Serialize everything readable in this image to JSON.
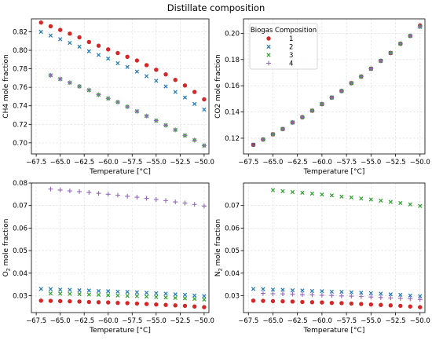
{
  "figure_title": "Distillate composition",
  "colors": {
    "1": "#d62728",
    "2": "#1f77b4",
    "3": "#2ca02c",
    "4": "#9467bd"
  },
  "legend": {
    "title": "Biogas Composition",
    "entries": [
      "1",
      "2",
      "3",
      "4"
    ],
    "location": "upper-left of top-right panel"
  },
  "chart_data": [
    {
      "type": "scatter",
      "ylabel": "CH4 mole fraction",
      "xlabel": "Temperature [°C]",
      "xlim": [
        -68.0,
        -49.5
      ],
      "ylim": [
        0.688,
        0.834
      ],
      "xticks": [
        -67.5,
        -65.0,
        -62.5,
        -60.0,
        -57.5,
        -55.0,
        -52.5,
        -50.0
      ],
      "xtick_labels": [
        "−67.5",
        "−65.0",
        "−62.5",
        "−60.0",
        "−57.5",
        "−55.0",
        "−52.5",
        "−50.0"
      ],
      "yticks": [
        0.7,
        0.72,
        0.74,
        0.76,
        0.78,
        0.8,
        0.82
      ],
      "ytick_labels": [
        "0.70",
        "0.72",
        "0.74",
        "0.76",
        "0.78",
        "0.80",
        "0.82"
      ],
      "grid": true,
      "series": [
        {
          "name": "1",
          "marker": "circle",
          "x": [
            -67.0,
            -66.0,
            -65.0,
            -64.0,
            -63.0,
            -62.0,
            -61.0,
            -60.0,
            -59.0,
            -58.0,
            -57.0,
            -56.0,
            -55.0,
            -54.0,
            -53.0,
            -52.0,
            -51.0,
            -50.0
          ],
          "y": [
            0.83,
            0.826,
            0.822,
            0.818,
            0.814,
            0.809,
            0.805,
            0.801,
            0.797,
            0.793,
            0.789,
            0.784,
            0.779,
            0.774,
            0.768,
            0.762,
            0.755,
            0.747
          ]
        },
        {
          "name": "2",
          "marker": "x",
          "x": [
            -67.0,
            -66.0,
            -65.0,
            -64.0,
            -63.0,
            -62.0,
            -61.0,
            -60.0,
            -59.0,
            -58.0,
            -57.0,
            -56.0,
            -55.0,
            -54.0,
            -53.0,
            -52.0,
            -51.0,
            -50.0
          ],
          "y": [
            0.82,
            0.816,
            0.812,
            0.808,
            0.804,
            0.799,
            0.795,
            0.791,
            0.786,
            0.782,
            0.777,
            0.772,
            0.767,
            0.761,
            0.755,
            0.749,
            0.742,
            0.736
          ]
        },
        {
          "name": "3",
          "marker": "x",
          "x": [
            -66.0,
            -65.0,
            -64.0,
            -63.0,
            -62.0,
            -61.0,
            -60.0,
            -59.0,
            -58.0,
            -57.0,
            -56.0,
            -55.0,
            -54.0,
            -53.0,
            -52.0,
            -51.0,
            -50.0
          ],
          "y": [
            0.773,
            0.769,
            0.765,
            0.761,
            0.757,
            0.752,
            0.748,
            0.744,
            0.739,
            0.734,
            0.729,
            0.724,
            0.719,
            0.714,
            0.708,
            0.703,
            0.697
          ]
        },
        {
          "name": "4",
          "marker": "plus",
          "x": [
            -66.0,
            -65.0,
            -64.0,
            -63.0,
            -62.0,
            -61.0,
            -60.0,
            -59.0,
            -58.0,
            -57.0,
            -56.0,
            -55.0,
            -54.0,
            -53.0,
            -52.0,
            -51.0,
            -50.0
          ],
          "y": [
            0.773,
            0.769,
            0.765,
            0.761,
            0.757,
            0.752,
            0.748,
            0.744,
            0.739,
            0.734,
            0.729,
            0.724,
            0.719,
            0.714,
            0.708,
            0.703,
            0.697
          ]
        }
      ]
    },
    {
      "type": "scatter",
      "ylabel": "CO2 mole fraction",
      "xlabel": "Temperature [°C]",
      "xlim": [
        -68.0,
        -49.5
      ],
      "ylim": [
        0.108,
        0.211
      ],
      "xticks": [
        -67.5,
        -65.0,
        -62.5,
        -60.0,
        -57.5,
        -55.0,
        -52.5,
        -50.0
      ],
      "xtick_labels": [
        "−67.5",
        "−65.0",
        "−62.5",
        "−60.0",
        "−57.5",
        "−55.0",
        "−52.5",
        "−50.0"
      ],
      "yticks": [
        0.12,
        0.14,
        0.16,
        0.18,
        0.2
      ],
      "ytick_labels": [
        "0.12",
        "0.14",
        "0.16",
        "0.18",
        "0.20"
      ],
      "grid": true,
      "series": [
        {
          "name": "1",
          "marker": "circle",
          "x": [
            -67.0,
            -66.0,
            -65.0,
            -64.0,
            -63.0,
            -62.0,
            -61.0,
            -60.0,
            -59.0,
            -58.0,
            -57.0,
            -56.0,
            -55.0,
            -54.0,
            -53.0,
            -52.0,
            -51.0,
            -50.0
          ],
          "y": [
            0.115,
            0.119,
            0.123,
            0.127,
            0.132,
            0.136,
            0.141,
            0.146,
            0.151,
            0.156,
            0.162,
            0.167,
            0.173,
            0.179,
            0.185,
            0.192,
            0.198,
            0.206
          ]
        },
        {
          "name": "2",
          "marker": "x",
          "x": [
            -67.0,
            -66.0,
            -65.0,
            -64.0,
            -63.0,
            -62.0,
            -61.0,
            -60.0,
            -59.0,
            -58.0,
            -57.0,
            -56.0,
            -55.0,
            -54.0,
            -53.0,
            -52.0,
            -51.0,
            -50.0
          ],
          "y": [
            0.115,
            0.119,
            0.123,
            0.127,
            0.132,
            0.136,
            0.141,
            0.146,
            0.151,
            0.156,
            0.162,
            0.167,
            0.173,
            0.179,
            0.185,
            0.192,
            0.198,
            0.205
          ]
        },
        {
          "name": "3",
          "marker": "x",
          "x": [
            -66.0,
            -65.0,
            -64.0,
            -63.0,
            -62.0,
            -61.0,
            -60.0,
            -59.0,
            -58.0,
            -57.0,
            -56.0,
            -55.0,
            -54.0,
            -53.0,
            -52.0,
            -51.0,
            -50.0
          ],
          "y": [
            0.119,
            0.123,
            0.127,
            0.132,
            0.136,
            0.141,
            0.146,
            0.151,
            0.156,
            0.162,
            0.167,
            0.173,
            0.179,
            0.185,
            0.192,
            0.198,
            0.205
          ]
        },
        {
          "name": "4",
          "marker": "plus",
          "x": [
            -66.0,
            -65.0,
            -64.0,
            -63.0,
            -62.0,
            -61.0,
            -60.0,
            -59.0,
            -58.0,
            -57.0,
            -56.0,
            -55.0,
            -54.0,
            -53.0,
            -52.0,
            -51.0,
            -50.0
          ],
          "y": [
            0.119,
            0.123,
            0.127,
            0.132,
            0.136,
            0.141,
            0.146,
            0.151,
            0.156,
            0.162,
            0.167,
            0.173,
            0.179,
            0.185,
            0.192,
            0.198,
            0.205
          ]
        }
      ]
    },
    {
      "type": "scatter",
      "ylabel": "O2 mole fraction",
      "xlabel": "Temperature [°C]",
      "xlim": [
        -68.0,
        -49.5
      ],
      "ylim": [
        0.0225,
        0.08
      ],
      "xticks": [
        -67.5,
        -65.0,
        -62.5,
        -60.0,
        -57.5,
        -55.0,
        -52.5,
        -50.0
      ],
      "xtick_labels": [
        "−67.5",
        "−65.0",
        "−62.5",
        "−60.0",
        "−57.5",
        "−55.0",
        "−52.5",
        "−50.0"
      ],
      "yticks": [
        0.03,
        0.04,
        0.05,
        0.06,
        0.07,
        0.08
      ],
      "ytick_labels": [
        "0.03",
        "0.04",
        "0.05",
        "0.06",
        "0.07",
        "0.08"
      ],
      "grid": true,
      "series": [
        {
          "name": "1",
          "marker": "circle",
          "x": [
            -67.0,
            -66.0,
            -65.0,
            -64.0,
            -63.0,
            -62.0,
            -61.0,
            -60.0,
            -59.0,
            -58.0,
            -57.0,
            -56.0,
            -55.0,
            -54.0,
            -53.0,
            -52.0,
            -51.0,
            -50.0
          ],
          "y": [
            0.0278,
            0.0277,
            0.0276,
            0.0275,
            0.0274,
            0.0272,
            0.0271,
            0.027,
            0.0268,
            0.0267,
            0.0265,
            0.0263,
            0.0261,
            0.0259,
            0.0257,
            0.0255,
            0.0252,
            0.0249
          ]
        },
        {
          "name": "2",
          "marker": "x",
          "x": [
            -67.0,
            -66.0,
            -65.0,
            -64.0,
            -63.0,
            -62.0,
            -61.0,
            -60.0,
            -59.0,
            -58.0,
            -57.0,
            -56.0,
            -55.0,
            -54.0,
            -53.0,
            -52.0,
            -51.0,
            -50.0
          ],
          "y": [
            0.033,
            0.0329,
            0.0327,
            0.0326,
            0.0324,
            0.0323,
            0.0321,
            0.032,
            0.0318,
            0.0317,
            0.0315,
            0.0313,
            0.0311,
            0.0309,
            0.0306,
            0.0304,
            0.0301,
            0.0298
          ]
        },
        {
          "name": "3",
          "marker": "x",
          "x": [
            -66.0,
            -65.0,
            -64.0,
            -63.0,
            -62.0,
            -61.0,
            -60.0,
            -59.0,
            -58.0,
            -57.0,
            -56.0,
            -55.0,
            -54.0,
            -53.0,
            -52.0,
            -51.0,
            -50.0
          ],
          "y": [
            0.031,
            0.0309,
            0.0308,
            0.0307,
            0.0305,
            0.0304,
            0.0302,
            0.0301,
            0.0299,
            0.0298,
            0.0296,
            0.0294,
            0.0292,
            0.029,
            0.0288,
            0.0286,
            0.0283
          ]
        },
        {
          "name": "4",
          "marker": "plus",
          "x": [
            -66.0,
            -65.0,
            -64.0,
            -63.0,
            -62.0,
            -61.0,
            -60.0,
            -59.0,
            -58.0,
            -57.0,
            -56.0,
            -55.0,
            -54.0,
            -53.0,
            -52.0,
            -51.0,
            -50.0
          ],
          "y": [
            0.0773,
            0.0769,
            0.0765,
            0.0762,
            0.0758,
            0.0754,
            0.075,
            0.0746,
            0.0741,
            0.0737,
            0.0732,
            0.0727,
            0.0722,
            0.0716,
            0.0711,
            0.0705,
            0.0698
          ]
        }
      ]
    },
    {
      "type": "scatter",
      "ylabel": "N2 mole fraction",
      "xlabel": "Temperature [°C]",
      "xlim": [
        -68.0,
        -49.5
      ],
      "ylim": [
        0.0225,
        0.08
      ],
      "xticks": [
        -67.5,
        -65.0,
        -62.5,
        -60.0,
        -57.5,
        -55.0,
        -52.5,
        -50.0
      ],
      "xtick_labels": [
        "−67.5",
        "−65.0",
        "−62.5",
        "−60.0",
        "−57.5",
        "−55.0",
        "−52.5",
        "−50.0"
      ],
      "yticks": [
        0.03,
        0.04,
        0.05,
        0.06,
        0.07
      ],
      "ytick_labels": [
        "0.03",
        "0.04",
        "0.05",
        "0.06",
        "0.07"
      ],
      "grid": true,
      "series": [
        {
          "name": "1",
          "marker": "circle",
          "x": [
            -67.0,
            -66.0,
            -65.0,
            -64.0,
            -63.0,
            -62.0,
            -61.0,
            -60.0,
            -59.0,
            -58.0,
            -57.0,
            -56.0,
            -55.0,
            -54.0,
            -53.0,
            -52.0,
            -51.0,
            -50.0
          ],
          "y": [
            0.0278,
            0.0277,
            0.0276,
            0.0275,
            0.0274,
            0.0272,
            0.0271,
            0.027,
            0.0268,
            0.0267,
            0.0265,
            0.0263,
            0.0261,
            0.0259,
            0.0257,
            0.0255,
            0.0252,
            0.0249
          ]
        },
        {
          "name": "2",
          "marker": "x",
          "x": [
            -67.0,
            -66.0,
            -65.0,
            -64.0,
            -63.0,
            -62.0,
            -61.0,
            -60.0,
            -59.0,
            -58.0,
            -57.0,
            -56.0,
            -55.0,
            -54.0,
            -53.0,
            -52.0,
            -51.0,
            -50.0
          ],
          "y": [
            0.033,
            0.0329,
            0.0327,
            0.0326,
            0.0324,
            0.0323,
            0.0321,
            0.032,
            0.0318,
            0.0317,
            0.0315,
            0.0313,
            0.0311,
            0.0309,
            0.0306,
            0.0304,
            0.0301,
            0.0298
          ]
        },
        {
          "name": "3",
          "marker": "x",
          "x": [
            -65.0,
            -64.0,
            -63.0,
            -62.0,
            -61.0,
            -60.0,
            -59.0,
            -58.0,
            -57.0,
            -56.0,
            -55.0,
            -54.0,
            -53.0,
            -52.0,
            -51.0,
            -50.0
          ],
          "y": [
            0.0768,
            0.0764,
            0.076,
            0.0757,
            0.0753,
            0.0749,
            0.0745,
            0.074,
            0.0736,
            0.0731,
            0.0727,
            0.0722,
            0.0716,
            0.0711,
            0.0705,
            0.0698
          ]
        },
        {
          "name": "4",
          "marker": "plus",
          "x": [
            -66.0,
            -65.0,
            -64.0,
            -63.0,
            -62.0,
            -61.0,
            -60.0,
            -59.0,
            -58.0,
            -57.0,
            -56.0,
            -55.0,
            -54.0,
            -53.0,
            -52.0,
            -51.0,
            -50.0
          ],
          "y": [
            0.031,
            0.0309,
            0.0308,
            0.0307,
            0.0305,
            0.0304,
            0.0302,
            0.0301,
            0.0299,
            0.0298,
            0.0296,
            0.0294,
            0.0292,
            0.029,
            0.0288,
            0.0286,
            0.0283
          ]
        }
      ]
    }
  ]
}
